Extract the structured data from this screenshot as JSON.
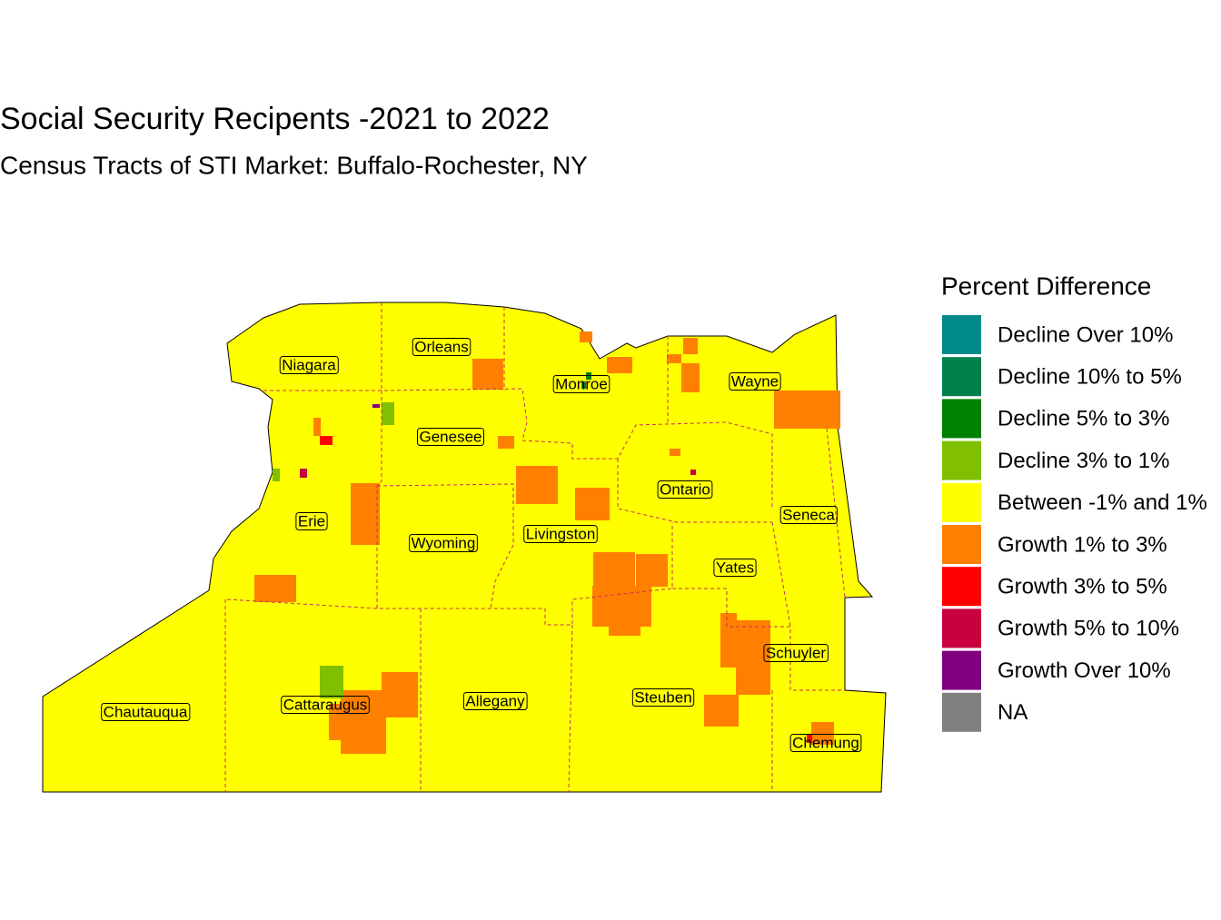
{
  "title": "Social Security Recipents -2021 to 2022",
  "subtitle": "Census Tracts of STI Market: Buffalo-Rochester, NY",
  "legend": {
    "title": "Percent Difference",
    "items": [
      {
        "label": "Decline Over 10%",
        "color": "#008B8B"
      },
      {
        "label": "Decline 10% to 5%",
        "color": "#00804A"
      },
      {
        "label": "Decline 5% to 3%",
        "color": "#008000"
      },
      {
        "label": "Decline 3% to 1%",
        "color": "#80C000"
      },
      {
        "label": "Between -1% and 1%",
        "color": "#FFFF00"
      },
      {
        "label": "Growth 1% to 3%",
        "color": "#FF8000"
      },
      {
        "label": "Growth 3% to 5%",
        "color": "#FF0000"
      },
      {
        "label": "Growth 5% to 10%",
        "color": "#C80040"
      },
      {
        "label": "Growth Over 10%",
        "color": "#800080"
      },
      {
        "label": "NA",
        "color": "#808080"
      }
    ]
  },
  "counties": [
    "Niagara",
    "Orleans",
    "Monroe",
    "Wayne",
    "Genesee",
    "Erie",
    "Ontario",
    "Seneca",
    "Wyoming",
    "Livingston",
    "Yates",
    "Schuyler",
    "Chautauqua",
    "Cattaraugus",
    "Allegany",
    "Steuben",
    "Chemung"
  ]
}
